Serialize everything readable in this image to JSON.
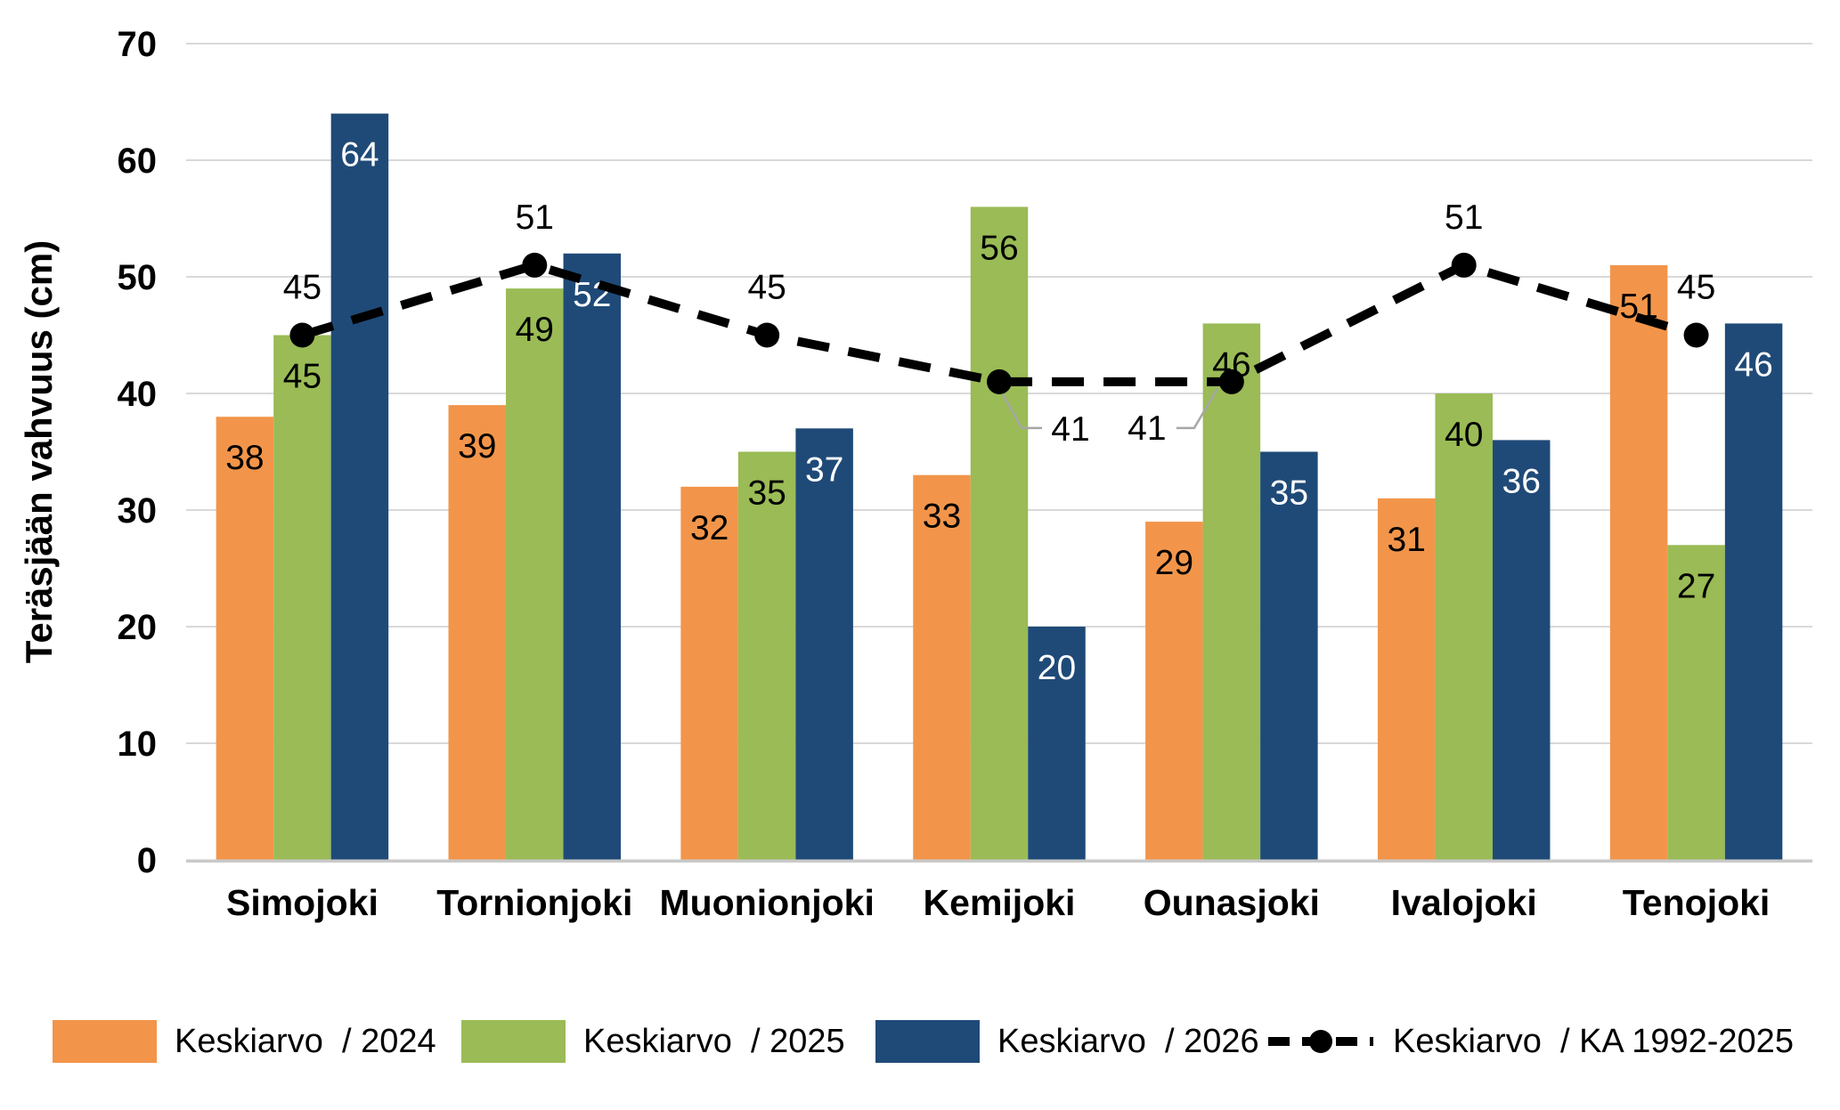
{
  "chart_data": {
    "type": "bar+line",
    "ylabel": "Teräsjään vahvuus (cm)",
    "xlabel": "",
    "ylim": [
      0,
      70
    ],
    "yticks": [
      0,
      10,
      20,
      30,
      40,
      50,
      60,
      70
    ],
    "grid": true,
    "legend_position": "bottom",
    "categories": [
      "Simojoki",
      "Tornionjoki",
      "Muonionjoki",
      "Kemijoki",
      "Ounasjoki",
      "Ivalojoki",
      "Tenojoki"
    ],
    "bar_series": [
      {
        "name": "Keskiarvo  / 2024",
        "color": "#F2954A",
        "label_color": "#000000",
        "values": [
          38,
          39,
          32,
          33,
          29,
          31,
          51
        ]
      },
      {
        "name": "Keskiarvo  / 2025",
        "color": "#9ABB55",
        "label_color": "#000000",
        "values": [
          45,
          49,
          35,
          56,
          46,
          40,
          27
        ]
      },
      {
        "name": "Keskiarvo  / 2026",
        "color": "#1F4A78",
        "label_color": "#FFFFFF",
        "values": [
          64,
          52,
          37,
          20,
          35,
          36,
          46
        ]
      }
    ],
    "line_series": {
      "name": "Keskiarvo  / KA 1992-2025",
      "color": "#000000",
      "style": "dashed",
      "marker": "circle",
      "values": [
        45,
        51,
        45,
        41,
        41,
        51,
        45
      ],
      "label_placement": [
        "above",
        "above",
        "above",
        "leader-right",
        "leader-left",
        "above",
        "above"
      ]
    },
    "style_colors": {
      "grid": "#D9D9D9",
      "baseline": "#C9C9C9",
      "leader": "#A6A6A6",
      "text": "#000000"
    }
  }
}
